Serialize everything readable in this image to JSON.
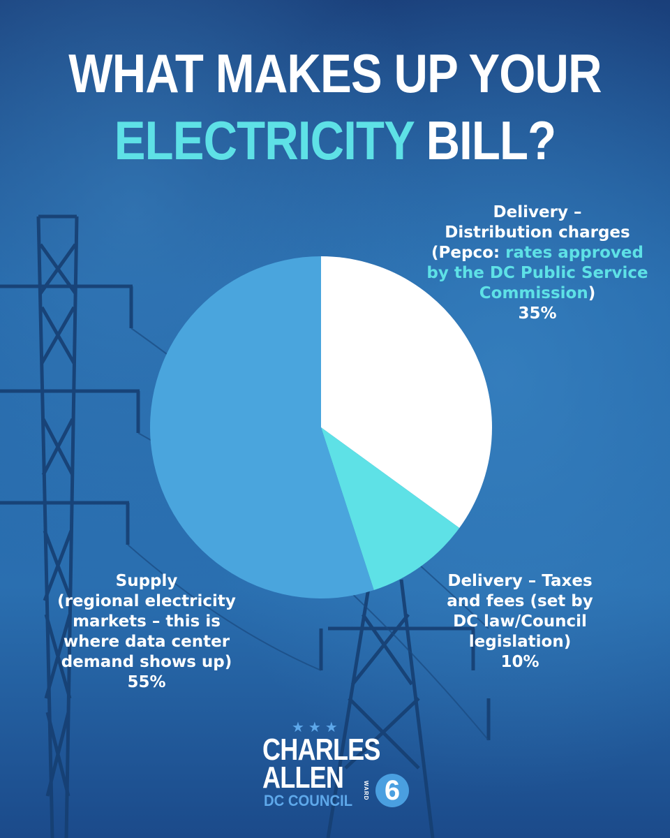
{
  "header": {
    "line1": "WHAT MAKES UP YOUR",
    "line2_accent": "ELECTRICITY",
    "line2_rest": "BILL?"
  },
  "chart_data": {
    "type": "pie",
    "start_angle_deg": 0,
    "direction": "clockwise",
    "slices": [
      {
        "key": "distribution",
        "value": 35,
        "color": "#ffffff",
        "label_lines": [
          "Delivery –",
          "Distribution charges"
        ],
        "label_detail_prefix": "(Pepco: ",
        "label_detail_highlight": "rates approved by the DC Public Service Commission",
        "label_detail_suffix": ")",
        "percent_label": "35%"
      },
      {
        "key": "taxes",
        "value": 10,
        "color": "#5ee1e6",
        "label_lines": [
          "Delivery – Taxes",
          "and fees (set by",
          "DC law/Council",
          "legislation)"
        ],
        "percent_label": "10%"
      },
      {
        "key": "supply",
        "value": 55,
        "color": "#4aa5dd",
        "label_lines": [
          "Supply",
          "(regional electricity",
          "markets – this is",
          "where data center",
          "demand shows up)"
        ],
        "percent_label": "55%"
      }
    ]
  },
  "logo": {
    "stars": "★★★",
    "name_first": "CHARLES",
    "name_last": "ALLEN",
    "council": "DC COUNCIL",
    "ward_word": "WARD",
    "ward_number": "6"
  },
  "colors": {
    "accent": "#5ee1e6",
    "background": "#1f5fa0",
    "logo_blue": "#5ea8ea"
  }
}
